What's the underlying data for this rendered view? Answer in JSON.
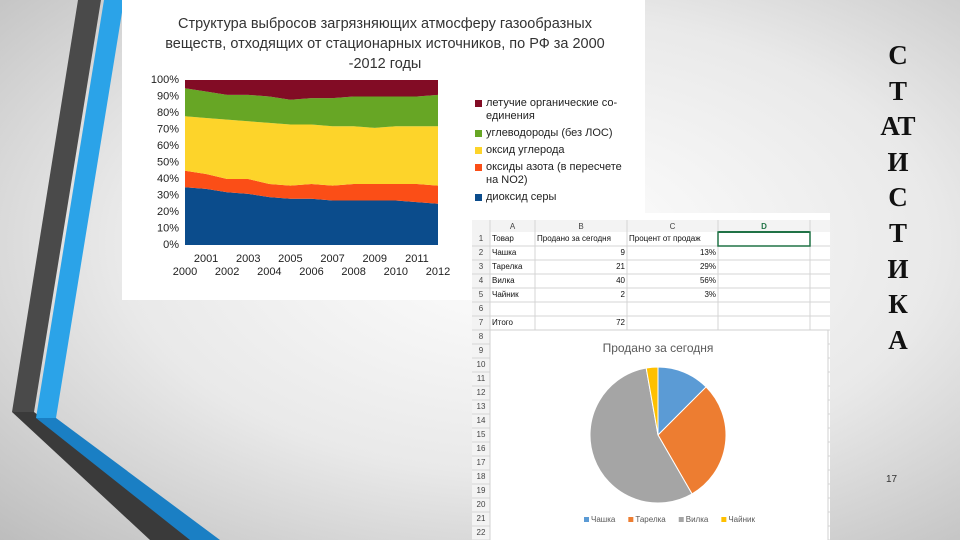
{
  "slide": {
    "vertical_title": "СТАТИСТИКА",
    "page_number": "17"
  },
  "chart_data": [
    {
      "type": "stacked_area",
      "title": "Структура выбросов загрязняющих атмосферу газообразных веществ, отходящих от стационарных источников, по РФ за 2000 -2012 годы",
      "categories": [
        "2000",
        "2001",
        "2002",
        "2003",
        "2004",
        "2005",
        "2006",
        "2007",
        "2008",
        "2009",
        "2010",
        "2011",
        "2012"
      ],
      "ylim": [
        0,
        100
      ],
      "yticks": [
        {
          "value": 0,
          "label": "0%"
        },
        {
          "value": 10,
          "label": "10%"
        },
        {
          "value": 20,
          "label": "20%"
        },
        {
          "value": 30,
          "label": "30%"
        },
        {
          "value": 40,
          "label": "40%"
        },
        {
          "value": 50,
          "label": "50%"
        },
        {
          "value": 60,
          "label": "60%"
        },
        {
          "value": 70,
          "label": "70%"
        },
        {
          "value": 80,
          "label": "80%"
        },
        {
          "value": 90,
          "label": "90%"
        },
        {
          "value": 100,
          "label": "100%"
        }
      ],
      "series": [
        {
          "name": "диоксид серы",
          "color": "#0b4c8c",
          "values": [
            35,
            34,
            32,
            31,
            29,
            28,
            28,
            27,
            27,
            27,
            27,
            26,
            25
          ]
        },
        {
          "name": "оксиды азота (в пересчете на NO2)",
          "color": "#fb4e17",
          "values": [
            10,
            9,
            8,
            9,
            8,
            8,
            9,
            9,
            10,
            10,
            10,
            11,
            11
          ]
        },
        {
          "name": "оксид углерода",
          "color": "#fdd42a",
          "values": [
            33,
            34,
            36,
            35,
            37,
            37,
            36,
            36,
            35,
            34,
            35,
            35,
            36
          ]
        },
        {
          "name": "углеводороды (без ЛОС)",
          "color": "#67a625",
          "values": [
            17,
            16,
            15,
            16,
            16,
            15,
            16,
            17,
            18,
            19,
            18,
            18,
            19
          ]
        },
        {
          "name": "летучие органические со-единения",
          "color": "#820c25",
          "values": [
            5,
            7,
            9,
            9,
            10,
            12,
            11,
            11,
            10,
            10,
            10,
            10,
            9
          ]
        }
      ]
    },
    {
      "type": "pie",
      "title": "Продано за сегодня",
      "categories": [
        "Чашка",
        "Тарелка",
        "Вилка",
        "Чайник"
      ],
      "values": [
        9,
        21,
        40,
        2
      ],
      "colors": [
        "#5b9bd5",
        "#ed7d31",
        "#a5a5a5",
        "#ffc000"
      ]
    }
  ],
  "spreadsheet": {
    "columns": [
      "A",
      "B",
      "C",
      "D"
    ],
    "row_numbers": [
      "1",
      "2",
      "3",
      "4",
      "5",
      "6",
      "7",
      "8",
      "9",
      "10",
      "11",
      "12",
      "13",
      "14",
      "15",
      "16",
      "17",
      "18",
      "19",
      "20",
      "21",
      "22"
    ],
    "header_row": [
      "Товар",
      "Продано за сегодня",
      "Процент от продаж"
    ],
    "rows": [
      [
        "Чашка",
        "9",
        "13%"
      ],
      [
        "Тарелка",
        "21",
        "29%"
      ],
      [
        "Вилка",
        "40",
        "56%"
      ],
      [
        "Чайник",
        "2",
        "3%"
      ]
    ],
    "total_row": [
      "Итого",
      "72"
    ]
  }
}
